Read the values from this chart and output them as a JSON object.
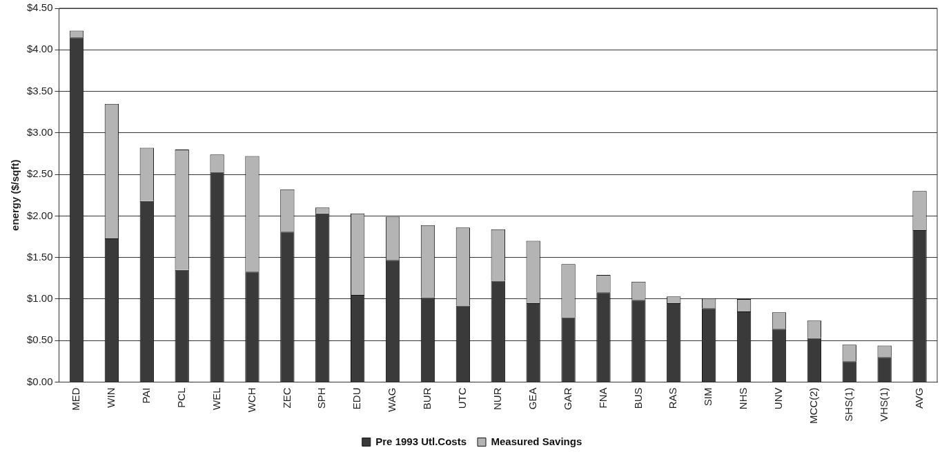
{
  "chart_data": {
    "type": "bar",
    "stacked": true,
    "ylabel": "energy ($/sqft)",
    "categories": [
      "MED",
      "WIN",
      "PAI",
      "PCL",
      "WEL",
      "WCH",
      "ZEC",
      "SPH",
      "EDU",
      "WAG",
      "BUR",
      "UTC",
      "NUR",
      "GEA",
      "GAR",
      "FNA",
      "BUS",
      "RAS",
      "SIM",
      "NHS",
      "UNV",
      "MCC(2)",
      "SHS(1)",
      "VHS(1)",
      "AVG"
    ],
    "series": [
      {
        "name": "Pre 1993 Utl.Costs",
        "color": "#3a3a3a",
        "values": [
          4.15,
          1.73,
          2.18,
          1.35,
          2.53,
          1.33,
          1.81,
          2.03,
          1.05,
          1.47,
          1.02,
          0.92,
          1.22,
          0.95,
          0.78,
          1.08,
          0.99,
          0.95,
          0.89,
          0.85,
          0.64,
          0.53,
          0.25,
          0.3,
          1.83
        ]
      },
      {
        "name": "Measured Savings",
        "color": "#b4b4b4",
        "values": [
          0.08,
          1.62,
          0.64,
          1.45,
          0.21,
          1.39,
          0.51,
          0.07,
          0.98,
          0.52,
          0.87,
          0.94,
          0.62,
          0.75,
          0.64,
          0.21,
          0.22,
          0.08,
          0.12,
          0.15,
          0.2,
          0.21,
          0.2,
          0.14,
          0.47
        ]
      }
    ],
    "ylim": [
      0,
      4.5
    ],
    "yticks": [
      {
        "value": 0,
        "label": "$0.00"
      },
      {
        "value": 0.5,
        "label": "$0.50"
      },
      {
        "value": 1,
        "label": "$1.00"
      },
      {
        "value": 1.5,
        "label": "$1.50"
      },
      {
        "value": 2,
        "label": "$2.00"
      },
      {
        "value": 2.5,
        "label": "$2.50"
      },
      {
        "value": 3,
        "label": "$3.00"
      },
      {
        "value": 3.5,
        "label": "$3.50"
      },
      {
        "value": 4,
        "label": "$4.00"
      },
      {
        "value": 4.5,
        "label": "$4.50"
      }
    ],
    "grid": "y",
    "legend": "bottom"
  }
}
